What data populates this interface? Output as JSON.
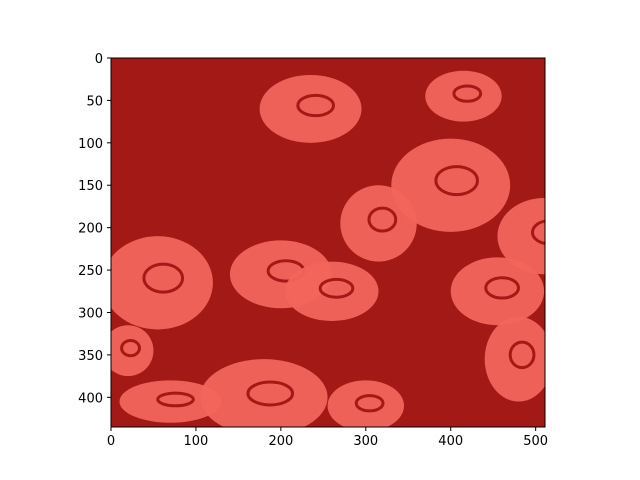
{
  "chart_data": {
    "type": "heatmap",
    "title": "",
    "xlabel": "",
    "ylabel": "",
    "xlim": [
      0,
      511
    ],
    "ylim": [
      435,
      0
    ],
    "x_ticks": [
      0,
      100,
      200,
      300,
      400,
      500
    ],
    "y_ticks": [
      0,
      50,
      100,
      150,
      200,
      250,
      300,
      350,
      400
    ],
    "image_width": 511,
    "image_height": 435,
    "image_colors": {
      "background_class": "#a31915",
      "foreground_class": "#f2655c"
    },
    "image_subject": "two-tone binarized image of rose flowers",
    "grid": false
  }
}
